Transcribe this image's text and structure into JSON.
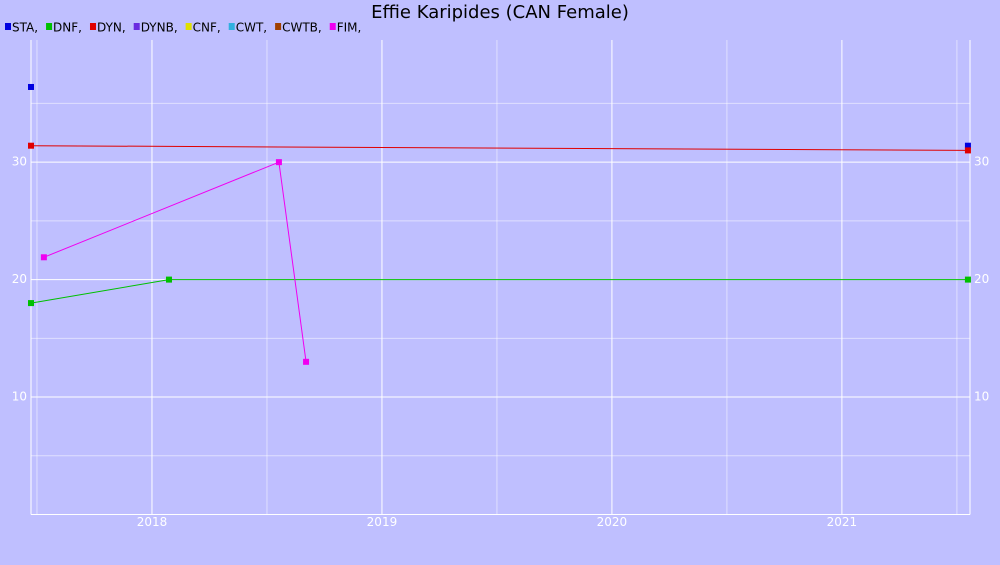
{
  "chart_data": {
    "type": "line",
    "title": "Effie Karipides (CAN Female)",
    "xlim": [
      2017.474,
      2021.557
    ],
    "xticks": [
      2018,
      2019,
      2020,
      2021
    ],
    "x_minor_ticks": [
      2017.5,
      2018.5,
      2019.5,
      2020.5,
      2021.5
    ],
    "ylim": [
      0,
      40.4
    ],
    "yticks": [
      10,
      20,
      30
    ],
    "y_minor_ticks": [
      5,
      15,
      25,
      35
    ],
    "grid": true,
    "background": "#bfbfff",
    "grid_color": "#ffffff",
    "series": [
      {
        "name": "STA,",
        "color": "#0000e0",
        "line": false,
        "x": [
          2017.474,
          2021.548
        ],
        "values": [
          36.4,
          31.4
        ]
      },
      {
        "name": "DNF,",
        "color": "#00c000",
        "line": true,
        "x": [
          2017.474,
          2018.074,
          2021.548
        ],
        "values": [
          18.0,
          20,
          20
        ]
      },
      {
        "name": "DYN,",
        "color": "#e00000",
        "line": true,
        "x": [
          2017.474,
          2021.548
        ],
        "values": [
          31.4,
          31.0
        ]
      },
      {
        "name": "DYNB,",
        "color": "#6a2be0",
        "line": true,
        "x": [],
        "values": []
      },
      {
        "name": "CNF,",
        "color": "#e0e000",
        "line": true,
        "x": [],
        "values": []
      },
      {
        "name": "CWT,",
        "color": "#30b0e0",
        "line": true,
        "x": [],
        "values": []
      },
      {
        "name": "CWTB,",
        "color": "#a04000",
        "line": true,
        "x": [],
        "values": []
      },
      {
        "name": "FIM,",
        "color": "#f000f0",
        "line": true,
        "x": [
          2017.53,
          2018.552,
          2018.67
        ],
        "values": [
          21.9,
          30,
          13.0
        ]
      }
    ]
  }
}
